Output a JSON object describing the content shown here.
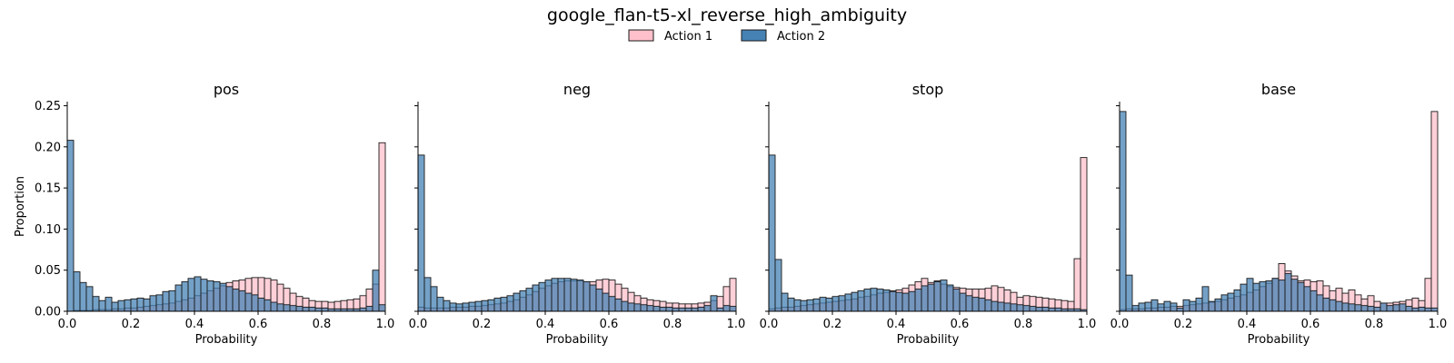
{
  "title": "google_flan-t5-xl_reverse_high_ambiguity",
  "legend": [
    {
      "name": "Action 1",
      "color": "#FFC0CB"
    },
    {
      "name": "Action 2",
      "color": "#4682B4"
    }
  ],
  "colors": {
    "action1": "#FFC0CB",
    "action2": "#4682B4",
    "edge": "#1a1a1a"
  },
  "chart_data": [
    {
      "type": "bar",
      "subtype": "histogram",
      "title": "pos",
      "xlabel": "Probability",
      "ylabel": "Proportion",
      "xlim": [
        0,
        1
      ],
      "ylim": [
        0,
        0.255
      ],
      "bins": 50,
      "xticks": [
        "0.0",
        "0.2",
        "0.4",
        "0.6",
        "0.8",
        "1.0"
      ],
      "yticks": [
        "0.00",
        "0.05",
        "0.10",
        "0.15",
        "0.20",
        "0.25"
      ],
      "series": [
        {
          "name": "Action 1",
          "values": [
            0.0,
            0.001,
            0.001,
            0.001,
            0.002,
            0.002,
            0.002,
            0.003,
            0.003,
            0.004,
            0.004,
            0.005,
            0.006,
            0.007,
            0.008,
            0.009,
            0.01,
            0.012,
            0.014,
            0.016,
            0.019,
            0.022,
            0.025,
            0.028,
            0.031,
            0.035,
            0.037,
            0.038,
            0.04,
            0.041,
            0.041,
            0.04,
            0.038,
            0.033,
            0.028,
            0.022,
            0.018,
            0.016,
            0.013,
            0.012,
            0.012,
            0.011,
            0.012,
            0.013,
            0.014,
            0.015,
            0.019,
            0.027,
            0.033,
            0.205
          ]
        },
        {
          "name": "Action 2",
          "values": [
            0.208,
            0.048,
            0.035,
            0.03,
            0.018,
            0.013,
            0.017,
            0.011,
            0.013,
            0.014,
            0.015,
            0.016,
            0.015,
            0.019,
            0.02,
            0.024,
            0.025,
            0.032,
            0.036,
            0.04,
            0.042,
            0.039,
            0.037,
            0.036,
            0.034,
            0.03,
            0.027,
            0.025,
            0.022,
            0.02,
            0.016,
            0.014,
            0.011,
            0.009,
            0.008,
            0.007,
            0.006,
            0.005,
            0.005,
            0.004,
            0.004,
            0.003,
            0.003,
            0.003,
            0.003,
            0.003,
            0.004,
            0.006,
            0.05,
            0.008
          ]
        }
      ]
    },
    {
      "type": "bar",
      "subtype": "histogram",
      "title": "neg",
      "xlabel": "Probability",
      "xlim": [
        0,
        1
      ],
      "ylim": [
        0,
        0.255
      ],
      "bins": 50,
      "xticks": [
        "0.0",
        "0.2",
        "0.4",
        "0.6",
        "0.8",
        "1.0"
      ],
      "series": [
        {
          "name": "Action 1",
          "values": [
            0.005,
            0.004,
            0.004,
            0.004,
            0.004,
            0.005,
            0.005,
            0.005,
            0.006,
            0.006,
            0.007,
            0.008,
            0.009,
            0.01,
            0.012,
            0.014,
            0.017,
            0.02,
            0.024,
            0.028,
            0.031,
            0.034,
            0.036,
            0.037,
            0.037,
            0.037,
            0.036,
            0.036,
            0.038,
            0.039,
            0.038,
            0.033,
            0.028,
            0.023,
            0.019,
            0.016,
            0.014,
            0.013,
            0.012,
            0.01,
            0.01,
            0.009,
            0.009,
            0.009,
            0.01,
            0.011,
            0.013,
            0.018,
            0.03,
            0.04
          ]
        },
        {
          "name": "Action 2",
          "values": [
            0.19,
            0.041,
            0.03,
            0.017,
            0.013,
            0.01,
            0.009,
            0.01,
            0.011,
            0.012,
            0.013,
            0.014,
            0.016,
            0.017,
            0.019,
            0.022,
            0.025,
            0.028,
            0.032,
            0.035,
            0.038,
            0.04,
            0.04,
            0.04,
            0.039,
            0.038,
            0.036,
            0.032,
            0.027,
            0.022,
            0.018,
            0.015,
            0.012,
            0.01,
            0.009,
            0.008,
            0.007,
            0.006,
            0.005,
            0.005,
            0.004,
            0.004,
            0.004,
            0.004,
            0.005,
            0.007,
            0.019,
            0.004,
            0.007,
            0.006
          ]
        }
      ]
    },
    {
      "type": "bar",
      "subtype": "histogram",
      "title": "stop",
      "xlabel": "Probability",
      "xlim": [
        0,
        1
      ],
      "ylim": [
        0,
        0.255
      ],
      "bins": 50,
      "xticks": [
        "0.0",
        "0.2",
        "0.4",
        "0.6",
        "0.8",
        "1.0"
      ],
      "series": [
        {
          "name": "Action 1",
          "values": [
            0.003,
            0.004,
            0.005,
            0.005,
            0.006,
            0.007,
            0.008,
            0.009,
            0.01,
            0.011,
            0.012,
            0.013,
            0.014,
            0.015,
            0.017,
            0.018,
            0.02,
            0.022,
            0.023,
            0.025,
            0.026,
            0.028,
            0.032,
            0.036,
            0.04,
            0.035,
            0.037,
            0.033,
            0.03,
            0.029,
            0.028,
            0.027,
            0.027,
            0.027,
            0.028,
            0.031,
            0.029,
            0.026,
            0.023,
            0.017,
            0.019,
            0.018,
            0.017,
            0.016,
            0.015,
            0.014,
            0.013,
            0.012,
            0.064,
            0.187
          ]
        },
        {
          "name": "Action 2",
          "values": [
            0.19,
            0.063,
            0.022,
            0.016,
            0.014,
            0.013,
            0.014,
            0.015,
            0.017,
            0.016,
            0.018,
            0.019,
            0.021,
            0.023,
            0.025,
            0.027,
            0.028,
            0.027,
            0.026,
            0.024,
            0.023,
            0.022,
            0.024,
            0.027,
            0.031,
            0.033,
            0.036,
            0.038,
            0.032,
            0.027,
            0.022,
            0.019,
            0.017,
            0.016,
            0.014,
            0.012,
            0.011,
            0.01,
            0.009,
            0.008,
            0.007,
            0.006,
            0.005,
            0.005,
            0.004,
            0.004,
            0.003,
            0.003,
            0.003,
            0.002
          ]
        }
      ]
    },
    {
      "type": "bar",
      "subtype": "histogram",
      "title": "base",
      "xlabel": "Probability",
      "xlim": [
        0,
        1
      ],
      "ylim": [
        0,
        0.255
      ],
      "bins": 50,
      "xticks": [
        "0.0",
        "0.2",
        "0.4",
        "0.6",
        "0.8",
        "1.0"
      ],
      "series": [
        {
          "name": "Action 1",
          "values": [
            0.002,
            0.003,
            0.003,
            0.003,
            0.004,
            0.004,
            0.005,
            0.005,
            0.006,
            0.006,
            0.007,
            0.008,
            0.009,
            0.01,
            0.011,
            0.012,
            0.014,
            0.016,
            0.018,
            0.02,
            0.023,
            0.026,
            0.03,
            0.034,
            0.04,
            0.058,
            0.049,
            0.043,
            0.037,
            0.038,
            0.036,
            0.037,
            0.031,
            0.025,
            0.028,
            0.022,
            0.026,
            0.02,
            0.015,
            0.019,
            0.012,
            0.01,
            0.01,
            0.011,
            0.012,
            0.014,
            0.016,
            0.013,
            0.04,
            0.243
          ]
        },
        {
          "name": "Action 2",
          "values": [
            0.243,
            0.044,
            0.007,
            0.01,
            0.011,
            0.014,
            0.009,
            0.012,
            0.01,
            0.004,
            0.014,
            0.012,
            0.016,
            0.03,
            0.012,
            0.015,
            0.02,
            0.022,
            0.026,
            0.033,
            0.04,
            0.034,
            0.036,
            0.037,
            0.04,
            0.038,
            0.046,
            0.039,
            0.035,
            0.03,
            0.025,
            0.02,
            0.016,
            0.014,
            0.012,
            0.01,
            0.009,
            0.008,
            0.007,
            0.006,
            0.005,
            0.01,
            0.007,
            0.008,
            0.009,
            0.006,
            0.004,
            0.005,
            0.004,
            0.004
          ]
        }
      ]
    }
  ]
}
